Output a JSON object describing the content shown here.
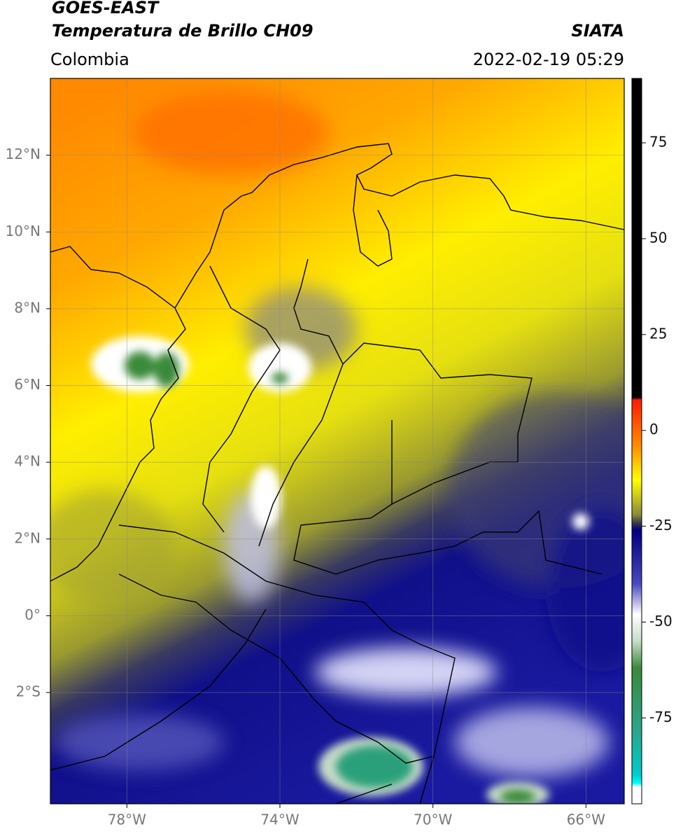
{
  "chart_data": {
    "type": "map",
    "title": "GOES-EAST",
    "subtitle": "Temperatura de Brillo CH09",
    "source": "SIATA",
    "region": "Colombia",
    "timestamp": "2022-02-19 05:29",
    "xlim": [
      -80,
      -65
    ],
    "ylim": [
      -4.9,
      14
    ],
    "xticks": [
      {
        "value": -78,
        "label": "78°W"
      },
      {
        "value": -74,
        "label": "74°W"
      },
      {
        "value": -70,
        "label": "70°W"
      },
      {
        "value": -66,
        "label": "66°W"
      }
    ],
    "yticks": [
      {
        "value": 12,
        "label": "12°N"
      },
      {
        "value": 10,
        "label": "10°N"
      },
      {
        "value": 8,
        "label": "8°N"
      },
      {
        "value": 6,
        "label": "6°N"
      },
      {
        "value": 4,
        "label": "4°N"
      },
      {
        "value": 2,
        "label": "2°N"
      },
      {
        "value": 0,
        "label": "0°"
      },
      {
        "value": -2,
        "label": "2°S"
      }
    ],
    "grid": true,
    "colorbar": {
      "lim": [
        -97.4,
        91.8
      ],
      "ticks": [
        75,
        50,
        25,
        0,
        -25,
        -50,
        -75
      ],
      "stops": [
        {
          "value": 91.8,
          "color": "#000000"
        },
        {
          "value": 8.5,
          "color": "#000000"
        },
        {
          "value": 8,
          "color": "#ff1a00"
        },
        {
          "value": -4,
          "color": "#ff8c00"
        },
        {
          "value": -13,
          "color": "#ffff00"
        },
        {
          "value": -22,
          "color": "#8a8a3a"
        },
        {
          "value": -24,
          "color": "#404040"
        },
        {
          "value": -26,
          "color": "#000080"
        },
        {
          "value": -40,
          "color": "#4848c0"
        },
        {
          "value": -48,
          "color": "#ffffff"
        },
        {
          "value": -55,
          "color": "#c8dcc8"
        },
        {
          "value": -62,
          "color": "#3a8a3a"
        },
        {
          "value": -78,
          "color": "#2aa58a"
        },
        {
          "value": -90,
          "color": "#00cccc"
        },
        {
          "value": -92,
          "color": "#00ffff"
        },
        {
          "value": -93,
          "color": "#ffffff"
        },
        {
          "value": -97.4,
          "color": "#ffffff"
        }
      ]
    }
  }
}
